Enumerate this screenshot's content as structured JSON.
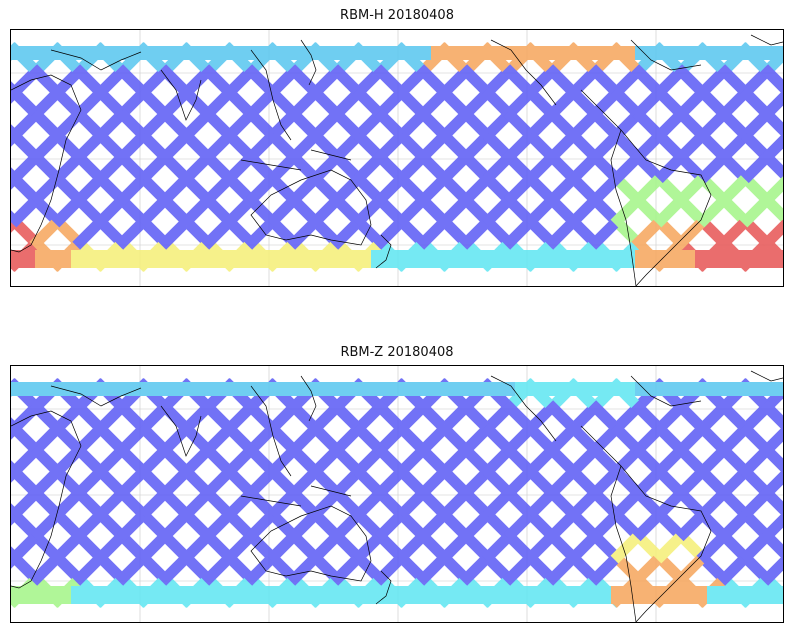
{
  "figure": {
    "panels": [
      {
        "id": "top",
        "title": "RBM-H 20180408",
        "hot_zones": "high"
      },
      {
        "id": "bottom",
        "title": "RBM-Z 20180408",
        "hot_zones": "low"
      }
    ]
  },
  "colors": {
    "low": "#5f5ff5",
    "mid": "#5cc8f0",
    "cyan": "#62e6f2",
    "green": "#a6f58a",
    "yellow": "#f5f07a",
    "orange": "#f6a860",
    "high": "#e85a5a",
    "coast": "#000000",
    "grid": "#c8c8c8"
  }
}
